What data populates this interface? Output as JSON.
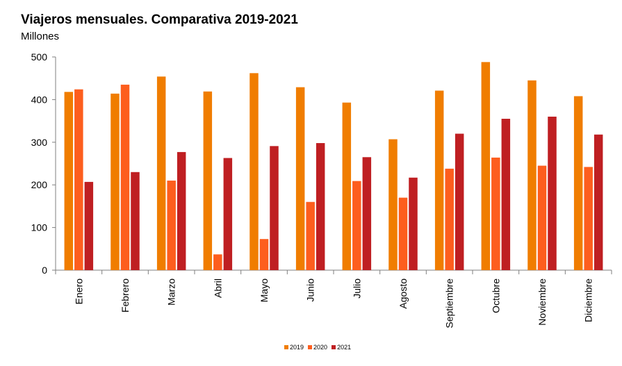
{
  "chart_data": {
    "type": "bar",
    "title": "Viajeros mensuales. Comparativa 2019-2021",
    "subtitle": "Millones",
    "categories": [
      "Enero",
      "Febrero",
      "Marzo",
      "Abril",
      "Mayo",
      "Junio",
      "Julio",
      "Agosto",
      "Septiembre",
      "Octubre",
      "Noviembre",
      "Diciembre"
    ],
    "series": [
      {
        "name": "2019",
        "color": "#f07d00",
        "values": [
          418,
          414,
          454,
          419,
          462,
          429,
          393,
          307,
          421,
          488,
          445,
          408
        ]
      },
      {
        "name": "2020",
        "color": "#fd5e1e",
        "values": [
          424,
          435,
          210,
          37,
          73,
          160,
          209,
          170,
          238,
          264,
          245,
          242
        ]
      },
      {
        "name": "2021",
        "color": "#bf1f22",
        "values": [
          207,
          230,
          277,
          263,
          291,
          298,
          265,
          217,
          320,
          355,
          360,
          318
        ]
      }
    ],
    "ylim": [
      0,
      500
    ],
    "yticks": [
      "0",
      "100",
      "200",
      "300",
      "400",
      "500"
    ],
    "legend_position": "bottom",
    "grid": false
  }
}
